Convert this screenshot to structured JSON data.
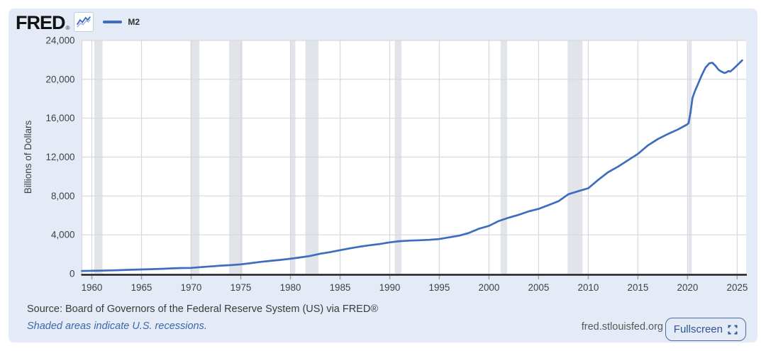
{
  "header": {
    "logo_text": "FRED",
    "logo_registered": "®",
    "legend": {
      "series_label": "M2"
    }
  },
  "chart_data": {
    "type": "line",
    "ylabel": "Billions of Dollars",
    "x_range": [
      1959,
      2025.9
    ],
    "y_range": [
      0,
      24000
    ],
    "x_ticks": [
      1960,
      1965,
      1970,
      1975,
      1980,
      1985,
      1990,
      1995,
      2000,
      2005,
      2010,
      2015,
      2020,
      2025
    ],
    "y_ticks": [
      {
        "v": 0,
        "label": "0"
      },
      {
        "v": 4000,
        "label": "4,000"
      },
      {
        "v": 8000,
        "label": "8,000"
      },
      {
        "v": 12000,
        "label": "12,000"
      },
      {
        "v": 16000,
        "label": "16,000"
      },
      {
        "v": 20000,
        "label": "20,000"
      },
      {
        "v": 24000,
        "label": "24,000"
      }
    ],
    "recessions": [
      [
        1960.25,
        1961.08
      ],
      [
        1969.92,
        1970.83
      ],
      [
        1973.83,
        1975.17
      ],
      [
        1980.0,
        1980.5
      ],
      [
        1981.5,
        1982.83
      ],
      [
        1990.5,
        1991.17
      ],
      [
        2001.17,
        2001.83
      ],
      [
        2007.92,
        2009.42
      ],
      [
        2020.08,
        2020.42
      ]
    ],
    "series": [
      {
        "name": "M2",
        "points": [
          [
            1959,
            287
          ],
          [
            1960,
            300
          ],
          [
            1961,
            320
          ],
          [
            1962,
            345
          ],
          [
            1963,
            375
          ],
          [
            1964,
            405
          ],
          [
            1965,
            440
          ],
          [
            1966,
            470
          ],
          [
            1967,
            500
          ],
          [
            1968,
            545
          ],
          [
            1969,
            580
          ],
          [
            1970,
            600
          ],
          [
            1971,
            675
          ],
          [
            1972,
            755
          ],
          [
            1973,
            830
          ],
          [
            1974,
            880
          ],
          [
            1975,
            960
          ],
          [
            1976,
            1090
          ],
          [
            1977,
            1220
          ],
          [
            1978,
            1320
          ],
          [
            1979,
            1425
          ],
          [
            1980,
            1540
          ],
          [
            1981,
            1680
          ],
          [
            1982,
            1830
          ],
          [
            1983,
            2060
          ],
          [
            1984,
            2220
          ],
          [
            1985,
            2420
          ],
          [
            1986,
            2615
          ],
          [
            1987,
            2785
          ],
          [
            1988,
            2935
          ],
          [
            1989,
            3060
          ],
          [
            1990,
            3225
          ],
          [
            1991,
            3350
          ],
          [
            1992,
            3410
          ],
          [
            1993,
            3445
          ],
          [
            1994,
            3490
          ],
          [
            1995,
            3565
          ],
          [
            1996,
            3740
          ],
          [
            1997,
            3920
          ],
          [
            1998,
            4205
          ],
          [
            1999,
            4630
          ],
          [
            2000,
            4915
          ],
          [
            2001,
            5430
          ],
          [
            2002,
            5770
          ],
          [
            2003,
            6060
          ],
          [
            2004,
            6410
          ],
          [
            2005,
            6670
          ],
          [
            2006,
            7060
          ],
          [
            2007,
            7455
          ],
          [
            2008,
            8180
          ],
          [
            2009,
            8490
          ],
          [
            2010,
            8790
          ],
          [
            2011,
            9650
          ],
          [
            2012,
            10445
          ],
          [
            2013,
            11015
          ],
          [
            2014,
            11670
          ],
          [
            2015,
            12330
          ],
          [
            2016,
            13195
          ],
          [
            2017,
            13845
          ],
          [
            2018,
            14360
          ],
          [
            2019,
            14820
          ],
          [
            2019.9,
            15320
          ],
          [
            2020.1,
            15480
          ],
          [
            2020.3,
            16600
          ],
          [
            2020.5,
            18100
          ],
          [
            2020.75,
            18800
          ],
          [
            2021,
            19400
          ],
          [
            2021.4,
            20350
          ],
          [
            2021.8,
            21200
          ],
          [
            2022.2,
            21650
          ],
          [
            2022.5,
            21700
          ],
          [
            2022.8,
            21400
          ],
          [
            2023.1,
            21000
          ],
          [
            2023.4,
            20800
          ],
          [
            2023.7,
            20650
          ],
          [
            2023.9,
            20700
          ],
          [
            2024.1,
            20850
          ],
          [
            2024.3,
            20800
          ],
          [
            2024.6,
            21050
          ],
          [
            2024.9,
            21350
          ],
          [
            2025.2,
            21650
          ],
          [
            2025.5,
            21950
          ]
        ]
      }
    ]
  },
  "footer": {
    "source_text": "Source: Board of Governors of the Federal Reserve System (US) via FRED®",
    "recession_note": "Shaded areas indicate U.S. recessions.",
    "site_label": "fred.stlouisfed.org",
    "fullscreen_label": "Fullscreen"
  },
  "colors": {
    "line": "#3e6cbe",
    "line_light": "#9db7e0",
    "recession_band": "#e1e4e9",
    "gridline": "#d6d8dc",
    "tick_mark": "#9aa0a6",
    "card_bg": "#e4ebf7",
    "plot_bg": "#ffffff",
    "axis": "#212121"
  }
}
